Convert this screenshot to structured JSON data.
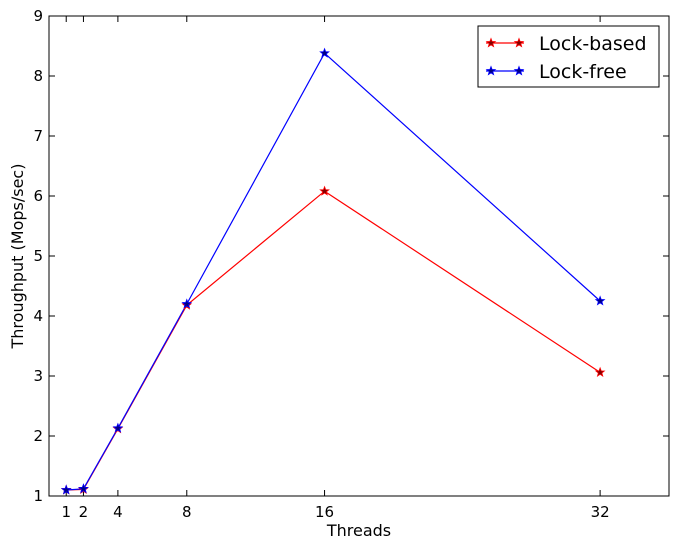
{
  "chart_data": {
    "type": "line",
    "title": "",
    "xlabel": "Threads",
    "ylabel": "Throughput (Mops/sec)",
    "x": [
      1,
      2,
      4,
      8,
      16,
      32
    ],
    "x_ticks": [
      1,
      2,
      4,
      8,
      16,
      32
    ],
    "xlim": [
      0,
      36
    ],
    "ylim": [
      1,
      9
    ],
    "y_ticks": [
      1,
      2,
      3,
      4,
      5,
      6,
      7,
      8,
      9
    ],
    "grid": false,
    "legend_position": "top-right",
    "series": [
      {
        "name": "Lock-based",
        "color": "#ff0000",
        "marker_fill": "#800000",
        "values": [
          1.1,
          1.11,
          2.12,
          4.18,
          6.08,
          3.06
        ]
      },
      {
        "name": "Lock-free",
        "color": "#0000ff",
        "marker_fill": "#000080",
        "values": [
          1.1,
          1.12,
          2.13,
          4.2,
          8.38,
          4.25
        ]
      }
    ]
  }
}
